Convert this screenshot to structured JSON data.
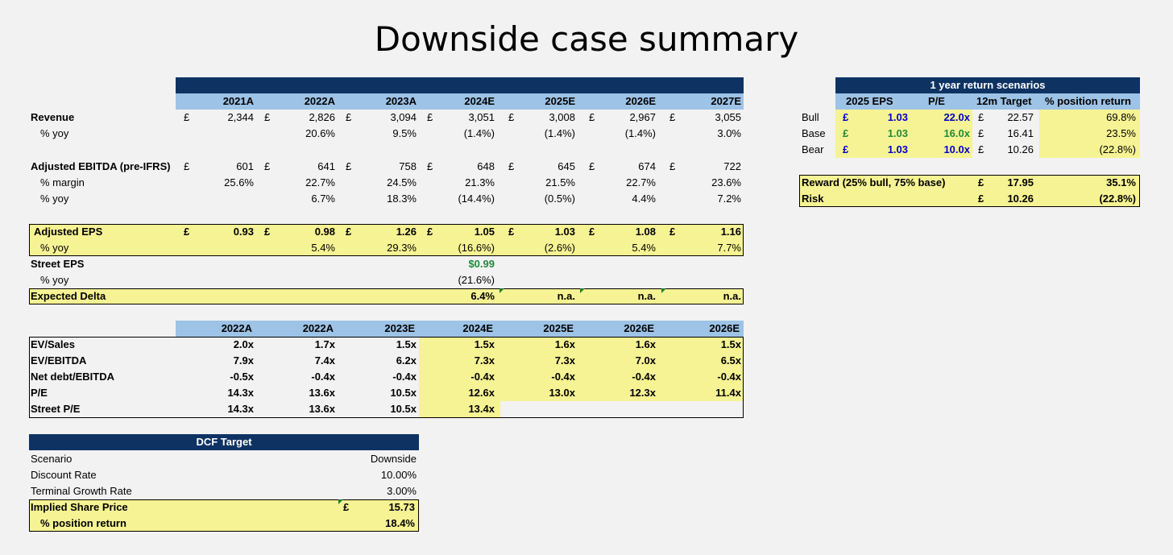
{
  "title": "Downside case summary",
  "colors": {
    "navy": "#0e3363",
    "light_blue": "#9dc3e6",
    "yellow": "#f6f394",
    "blue_text": "#0000cc",
    "green_text": "#1f8b3a"
  },
  "main": {
    "years": [
      "2021A",
      "2022A",
      "2023A",
      "2024E",
      "2025E",
      "2026E",
      "2027E"
    ],
    "currency": "£",
    "revenue": {
      "label": "Revenue",
      "values": [
        "2,344",
        "2,826",
        "3,094",
        "3,051",
        "3,008",
        "2,967",
        "3,055"
      ]
    },
    "revenue_yoy": {
      "label": "% yoy",
      "values": [
        "",
        "20.6%",
        "9.5%",
        "(1.4%)",
        "(1.4%)",
        "(1.4%)",
        "3.0%"
      ]
    },
    "ebitda": {
      "label": "Adjusted EBITDA (pre-IFRS)",
      "values": [
        "601",
        "641",
        "758",
        "648",
        "645",
        "674",
        "722"
      ]
    },
    "ebitda_margin": {
      "label": "% margin",
      "values": [
        "25.6%",
        "22.7%",
        "24.5%",
        "21.3%",
        "21.5%",
        "22.7%",
        "23.6%"
      ]
    },
    "ebitda_yoy": {
      "label": "% yoy",
      "values": [
        "",
        "6.7%",
        "18.3%",
        "(14.4%)",
        "(0.5%)",
        "4.4%",
        "7.2%"
      ]
    },
    "eps": {
      "label": "Adjusted EPS",
      "values": [
        "0.93",
        "0.98",
        "1.26",
        "1.05",
        "1.03",
        "1.08",
        "1.16"
      ]
    },
    "eps_yoy": {
      "label": "% yoy",
      "values": [
        "",
        "5.4%",
        "29.3%",
        "(16.6%)",
        "(2.6%)",
        "5.4%",
        "7.7%"
      ]
    },
    "street_eps": {
      "label": "Street EPS",
      "value": "$0.99"
    },
    "street_yoy": {
      "label": "% yoy",
      "value": "(21.6%)"
    },
    "delta": {
      "label": "Expected Delta",
      "values": [
        "6.4%",
        "n.a.",
        "n.a.",
        "n.a."
      ]
    }
  },
  "multiples": {
    "years": [
      "2022A",
      "2022A",
      "2023E",
      "2024E",
      "2025E",
      "2026E",
      "2026E"
    ],
    "rows": [
      {
        "label": "EV/Sales",
        "values": [
          "2.0x",
          "1.7x",
          "1.5x",
          "1.5x",
          "1.6x",
          "1.6x",
          "1.5x"
        ]
      },
      {
        "label": "EV/EBITDA",
        "values": [
          "7.9x",
          "7.4x",
          "6.2x",
          "7.3x",
          "7.3x",
          "7.0x",
          "6.5x"
        ]
      },
      {
        "label": "Net debt/EBITDA",
        "values": [
          "-0.5x",
          "-0.4x",
          "-0.4x",
          "-0.4x",
          "-0.4x",
          "-0.4x",
          "-0.4x"
        ]
      },
      {
        "label": "P/E",
        "values": [
          "14.3x",
          "13.6x",
          "10.5x",
          "12.6x",
          "13.0x",
          "12.3x",
          "11.4x"
        ]
      },
      {
        "label": "Street P/E",
        "values": [
          "14.3x",
          "13.6x",
          "10.5x",
          "13.4x",
          "",
          "",
          ""
        ]
      }
    ]
  },
  "dcf": {
    "title": "DCF Target",
    "scenario": {
      "label": "Scenario",
      "value": "Downside"
    },
    "discount": {
      "label": "Discount Rate",
      "value": "10.00%"
    },
    "growth": {
      "label": "Terminal Growth Rate",
      "value": "3.00%"
    },
    "price": {
      "label": "Implied Share Price",
      "currency": "£",
      "value": "15.73"
    },
    "return": {
      "label": "% position return",
      "value": "18.4%"
    }
  },
  "scenarios": {
    "title": "1 year return scenarios",
    "headers": [
      "2025 EPS",
      "P/E",
      "12m Target",
      "% position return"
    ],
    "rows": [
      {
        "label": "Bull",
        "eps": "1.03",
        "pe": "22.0x",
        "target": "22.57",
        "ret": "69.8%"
      },
      {
        "label": "Base",
        "eps": "1.03",
        "pe": "16.0x",
        "target": "16.41",
        "ret": "23.5%"
      },
      {
        "label": "Bear",
        "eps": "1.03",
        "pe": "10.0x",
        "target": "10.26",
        "ret": "(22.8%)"
      }
    ],
    "reward": {
      "label": "Reward (25% bull, 75% base)",
      "target": "17.95",
      "ret": "35.1%"
    },
    "risk": {
      "label": "Risk",
      "target": "10.26",
      "ret": "(22.8%)"
    }
  }
}
